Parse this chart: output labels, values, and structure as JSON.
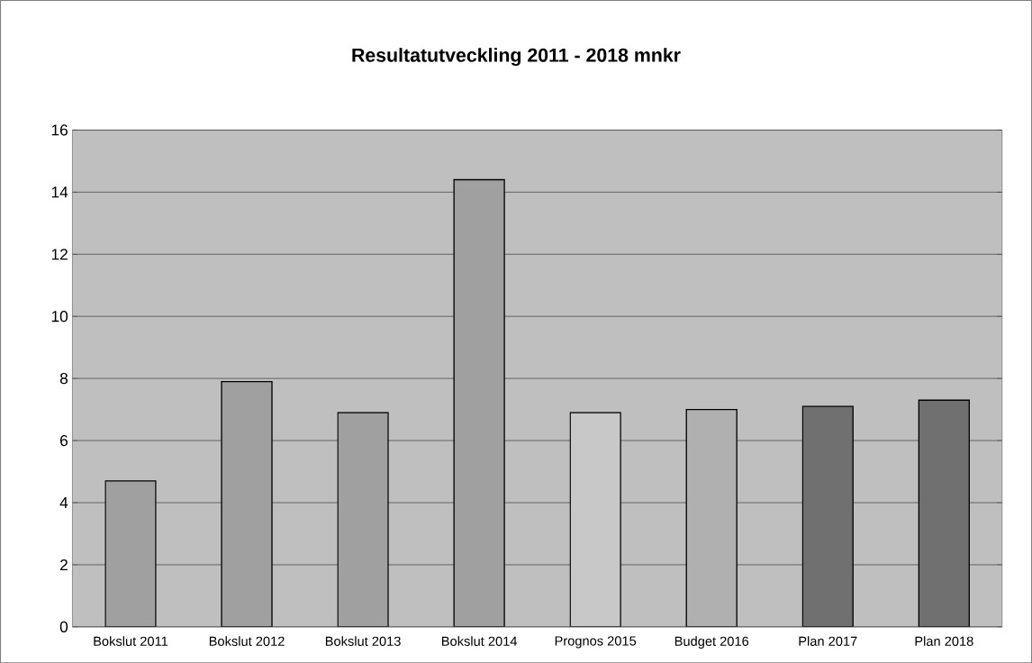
{
  "chart_data": {
    "type": "bar",
    "title": "Resultatutveckling 2011 - 2018 mnkr",
    "categories": [
      "Bokslut 2011",
      "Bokslut 2012",
      "Bokslut 2013",
      "Bokslut 2014",
      "Prognos 2015",
      "Budget 2016",
      "Plan 2017",
      "Plan 2018"
    ],
    "values": [
      4.7,
      7.9,
      6.9,
      14.4,
      6.9,
      7.0,
      7.1,
      7.3
    ],
    "colors": [
      "#a0a0a0",
      "#a0a0a0",
      "#a0a0a0",
      "#a0a0a0",
      "#c8c8c8",
      "#b0b0b0",
      "#707070",
      "#707070"
    ],
    "ylim": [
      0,
      16
    ],
    "yticks": [
      0,
      2,
      4,
      6,
      8,
      10,
      12,
      14,
      16
    ],
    "grid": "y"
  }
}
